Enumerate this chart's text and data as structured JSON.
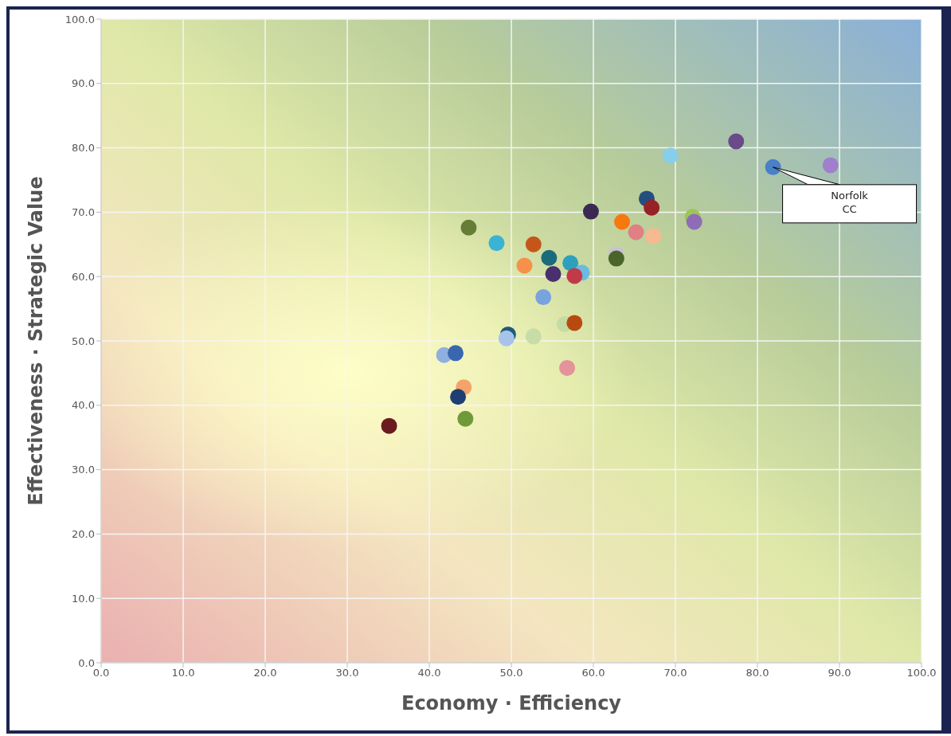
{
  "chart_data": {
    "type": "scatter",
    "xlabel": "Economy · Efficiency",
    "ylabel": "Effectiveness · Strategic Value",
    "x": [
      35.1,
      41.8,
      43.2,
      44.2,
      43.5,
      44.4,
      44.8,
      48.2,
      49.6,
      49.4,
      51.6,
      52.7,
      52.7,
      54.6,
      55.1,
      53.9,
      57.2,
      58.6,
      57.7,
      56.5,
      57.7,
      56.8,
      59.7,
      63.5,
      62.8,
      62.8,
      65.2,
      67.3,
      66.5,
      67.1,
      72.1,
      72.3,
      69.4,
      77.4,
      81.9,
      88.9
    ],
    "values": [
      36.8,
      47.8,
      48.1,
      42.8,
      41.3,
      37.9,
      67.6,
      65.2,
      51.0,
      50.4,
      61.7,
      65.0,
      50.7,
      62.9,
      60.4,
      56.8,
      62.1,
      60.6,
      60.1,
      52.6,
      52.8,
      45.8,
      70.1,
      68.5,
      63.4,
      62.8,
      66.9,
      66.3,
      72.1,
      70.7,
      69.3,
      68.5,
      78.8,
      81.0,
      77.0,
      77.3
    ],
    "colors": [
      "#6b1a1f",
      "#8fb0df",
      "#3a66b0",
      "#f4a46a",
      "#1f3f73",
      "#6f9a3a",
      "#667d35",
      "#3bb3d5",
      "#1d5b78",
      "#a8c3ea",
      "#f6904a",
      "#c4561a",
      "#c8dca8",
      "#1c6b7a",
      "#4a2f6e",
      "#79a3dc",
      "#2ea0bd",
      "#6bbbe0",
      "#c23a48",
      "#c5dba3",
      "#b84a10",
      "#e3939a",
      "#3b2953",
      "#f7780f",
      "#c8c0d8",
      "#4b6428",
      "#e08083",
      "#f7b98f",
      "#234f80",
      "#962126",
      "#9dc55a",
      "#8e6cb8",
      "#87ceeb",
      "#6a4a8a",
      "#4a80c8",
      "#a07fcc"
    ],
    "xlim": [
      0,
      100
    ],
    "ylim": [
      0,
      100
    ],
    "xticks": [
      {
        "value": 0,
        "label": "0.0"
      },
      {
        "value": 10,
        "label": "10.0"
      },
      {
        "value": 20,
        "label": "20.0"
      },
      {
        "value": 30,
        "label": "30.0"
      },
      {
        "value": 40,
        "label": "40.0"
      },
      {
        "value": 50,
        "label": "50.0"
      },
      {
        "value": 60,
        "label": "60.0"
      },
      {
        "value": 70,
        "label": "70.0"
      },
      {
        "value": 80,
        "label": "80.0"
      },
      {
        "value": 90,
        "label": "90.0"
      },
      {
        "value": 100,
        "label": "100.0"
      }
    ],
    "yticks": [
      {
        "value": 0,
        "label": "0.0"
      },
      {
        "value": 10,
        "label": "10.0"
      },
      {
        "value": 20,
        "label": "20.0"
      },
      {
        "value": 30,
        "label": "30.0"
      },
      {
        "value": 40,
        "label": "40.0"
      },
      {
        "value": 50,
        "label": "50.0"
      },
      {
        "value": 60,
        "label": "60.0"
      },
      {
        "value": 70,
        "label": "70.0"
      },
      {
        "value": 80,
        "label": "80.0"
      },
      {
        "value": 90,
        "label": "90.0"
      },
      {
        "value": 100,
        "label": "100.0"
      }
    ],
    "grid": true,
    "marker": "circle",
    "annotations": [
      {
        "text": "Norfolk\nCC",
        "x": 81.9,
        "y": 77.0
      }
    ]
  }
}
